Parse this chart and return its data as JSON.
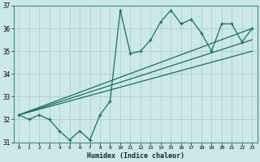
{
  "xlabel": "Humidex (Indice chaleur)",
  "bg_color": "#cce8e8",
  "grid_color": "#aacfcf",
  "line_color": "#1a6e60",
  "xlim": [
    -0.5,
    23.5
  ],
  "ylim": [
    31,
    37
  ],
  "xticks": [
    0,
    1,
    2,
    3,
    4,
    5,
    6,
    7,
    8,
    9,
    10,
    11,
    12,
    13,
    14,
    15,
    16,
    17,
    18,
    19,
    20,
    21,
    22,
    23
  ],
  "yticks": [
    31,
    32,
    33,
    34,
    35,
    36,
    37
  ],
  "zigzag_x": [
    0,
    1,
    2,
    3,
    4,
    5,
    6,
    7,
    8,
    9,
    10,
    11,
    12,
    13,
    14,
    15,
    16,
    17,
    18,
    19,
    20,
    21,
    22,
    23
  ],
  "zigzag_y": [
    32.2,
    32.0,
    32.2,
    32.0,
    31.5,
    31.1,
    31.5,
    31.1,
    32.2,
    32.8,
    36.8,
    34.9,
    35.0,
    35.5,
    36.3,
    36.8,
    36.2,
    36.4,
    35.8,
    35.0,
    36.2,
    36.2,
    35.4,
    36.0
  ],
  "trend1_x": [
    0,
    23
  ],
  "trend1_y": [
    32.2,
    36.0
  ],
  "trend2_x": [
    0,
    23
  ],
  "trend2_y": [
    32.2,
    35.5
  ],
  "trend3_x": [
    0,
    23
  ],
  "trend3_y": [
    32.2,
    35.0
  ]
}
